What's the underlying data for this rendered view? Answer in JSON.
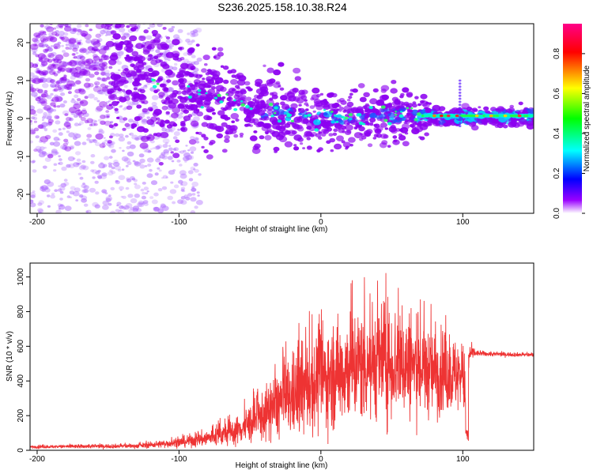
{
  "chart_data": [
    {
      "type": "heatmap",
      "title": "S236.2025.158.10.38.R24",
      "xlabel": "Height of straight line (km)",
      "ylabel": "Frequency (Hz)",
      "xlim": [
        -205,
        150
      ],
      "ylim": [
        -25,
        25
      ],
      "xticks": [
        -200,
        -100,
        0,
        100
      ],
      "yticks": [
        -20,
        -10,
        0,
        10,
        20
      ],
      "colorbar": {
        "label": "Normalized spectral amplitude",
        "range": [
          0,
          0.95
        ],
        "ticks": [
          0.0,
          0.2,
          0.4,
          0.6,
          0.8
        ],
        "colormap": [
          "#ffffff",
          "#8b00ff",
          "#0000ff",
          "#00ffff",
          "#00ff00",
          "#ffff00",
          "#ff0000",
          "#ff0080"
        ]
      },
      "ridge": {
        "x": [
          -200,
          -150,
          -120,
          -100,
          -80,
          -60,
          -40,
          -20,
          0,
          20,
          40,
          60,
          75,
          100,
          150
        ],
        "frequency": [
          13,
          13,
          11,
          8,
          6,
          4,
          2,
          1,
          0.5,
          0,
          0.5,
          1,
          0.5,
          0.5,
          0.5
        ]
      }
    },
    {
      "type": "line",
      "xlabel": "Height of straight line (km)",
      "ylabel": "SNR (10 * v/v)",
      "xlim": [
        -205,
        150
      ],
      "ylim": [
        0,
        1080
      ],
      "xticks": [
        -200,
        -100,
        0,
        100
      ],
      "yticks": [
        0,
        200,
        400,
        600,
        800,
        1000
      ],
      "line_color": "#ee3333",
      "envelope": {
        "x": [
          -205,
          -130,
          -100,
          -80,
          -60,
          -40,
          -30,
          -20,
          -10,
          0,
          10,
          20,
          30,
          40,
          50,
          60,
          70,
          80,
          90,
          100,
          102,
          105,
          110,
          120,
          150
        ],
        "mean": [
          20,
          25,
          45,
          70,
          110,
          200,
          270,
          310,
          360,
          410,
          440,
          480,
          500,
          520,
          510,
          500,
          470,
          450,
          440,
          430,
          340,
          560,
          560,
          555,
          550
        ],
        "spread": [
          8,
          12,
          25,
          45,
          70,
          130,
          180,
          210,
          240,
          260,
          270,
          290,
          300,
          300,
          300,
          280,
          250,
          220,
          200,
          180,
          150,
          45,
          15,
          12,
          10
        ]
      }
    }
  ]
}
